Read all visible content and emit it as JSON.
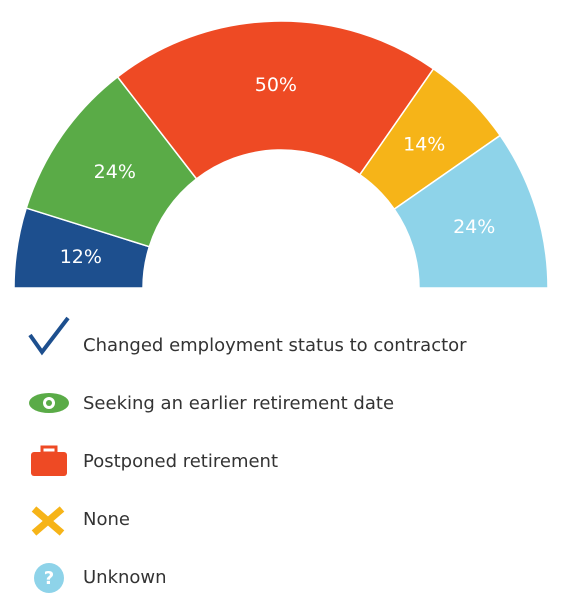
{
  "chart_data": {
    "type": "pie",
    "categories": [
      "Changed employment status to contractor",
      "Seeking an earlier retirement date",
      "Postponed retirement",
      "None",
      "Unknown"
    ],
    "values": [
      12,
      24,
      50,
      14,
      24
    ],
    "value_labels": [
      "12%",
      "24%",
      "50%",
      "14%",
      "24%"
    ],
    "colors": [
      "#1d4f8e",
      "#5aab47",
      "#ee4a24",
      "#f6b418",
      "#8ed3e9"
    ]
  }
}
